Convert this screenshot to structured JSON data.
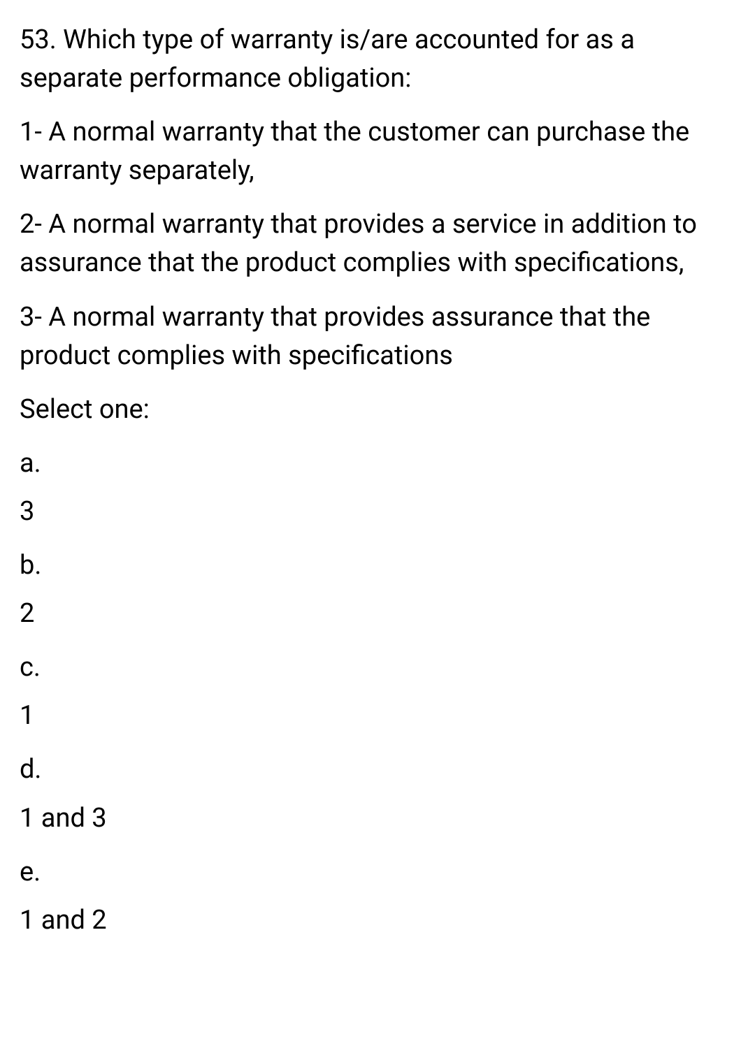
{
  "question": {
    "text": "53. Which type of warranty is/are accounted for as a separate performance obligation:"
  },
  "statements": [
    "1- A normal warranty that the customer can purchase the warranty separately,",
    "2- A normal warranty that provides a service in addition to assurance that the product complies with specifications,",
    "3- A normal warranty that provides assurance that the product complies with specifications"
  ],
  "prompt": "Select one:",
  "options": [
    {
      "letter": "a.",
      "value": "3"
    },
    {
      "letter": "b.",
      "value": "2"
    },
    {
      "letter": "c.",
      "value": "1"
    },
    {
      "letter": "d.",
      "value": "1 and 3"
    },
    {
      "letter": "e.",
      "value": "1 and 2"
    }
  ],
  "style": {
    "text_color": "#000000",
    "background_color": "#ffffff",
    "font_size_pt": 29,
    "font_weight": 400
  }
}
